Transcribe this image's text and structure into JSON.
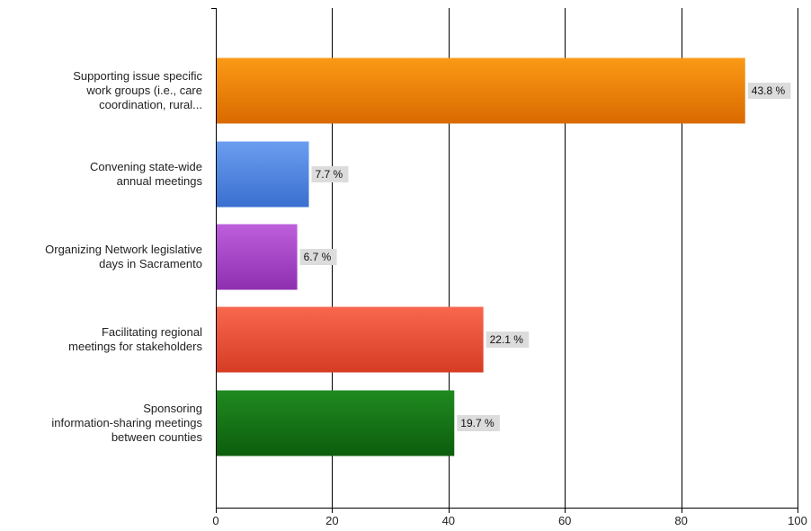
{
  "chart_data": {
    "type": "bar",
    "orientation": "horizontal",
    "categories": [
      [
        "Supporting issue specific",
        "work groups (i.e., care",
        "coordination, rural..."
      ],
      [
        "Convening state-wide",
        "annual meetings"
      ],
      [
        "Organizing Network legislative",
        "days in Sacramento"
      ],
      [
        "Facilitating regional",
        "meetings for stakeholders"
      ],
      [
        "Sponsoring",
        "information-sharing meetings",
        "between counties"
      ]
    ],
    "values": [
      91,
      16,
      14,
      46,
      41
    ],
    "data_labels": [
      "43.8 %",
      "7.7 %",
      "6.7 %",
      "22.1 %",
      "19.7 %"
    ],
    "colors": [
      [
        "#fb9a16",
        "#d96a00"
      ],
      [
        "#6b9ef0",
        "#3a6fd0"
      ],
      [
        "#be5fdc",
        "#8d2fb0"
      ],
      [
        "#f9674f",
        "#d63c24"
      ],
      [
        "#1f8a1f",
        "#0d5e0d"
      ]
    ],
    "xlim": [
      0,
      100
    ],
    "x_ticks": [
      0,
      20,
      40,
      60,
      80,
      100
    ],
    "grid": true,
    "title": "",
    "xlabel": "",
    "ylabel": ""
  }
}
